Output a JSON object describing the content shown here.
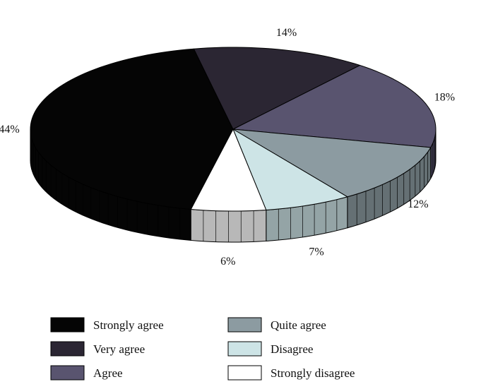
{
  "chart_data": {
    "type": "pie",
    "style": "3d",
    "slices": [
      {
        "label": "Strongly agree",
        "value": 44,
        "value_label": "44%",
        "color": "#050505"
      },
      {
        "label": "Very agree",
        "value": 14,
        "value_label": "14%",
        "color": "#2b2633"
      },
      {
        "label": "Agree",
        "value": 18,
        "value_label": "18%",
        "color": "#59546f"
      },
      {
        "label": "Quite agree",
        "value": 12,
        "value_label": "12%",
        "color": "#8c9ba1"
      },
      {
        "label": "Disagree",
        "value": 7,
        "value_label": "7%",
        "color": "#cde4e6"
      },
      {
        "label": "Strongly disagree",
        "value": 6,
        "value_label": "6%",
        "color": "#ffffff"
      }
    ],
    "legend": {
      "placement": "bottom",
      "columns": [
        [
          "Strongly agree",
          "Very agree",
          "Agree"
        ],
        [
          "Quite agree",
          "Disagree",
          "Strongly disagree"
        ]
      ]
    }
  }
}
